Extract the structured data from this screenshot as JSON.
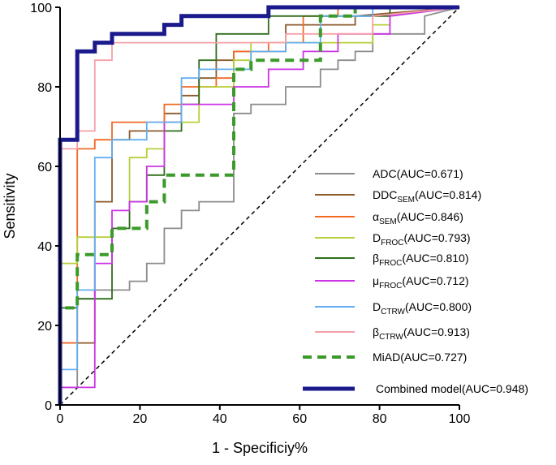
{
  "chart_data": {
    "type": "line",
    "title": "",
    "xlabel": "1 - Specificiy%",
    "ylabel": "Sensitivity",
    "xlim": [
      0,
      100
    ],
    "ylim": [
      0,
      100
    ],
    "x_ticks": [
      "0",
      "20",
      "40",
      "60",
      "80",
      "100"
    ],
    "y_ticks": [
      "0",
      "20",
      "40",
      "60",
      "80",
      "100"
    ],
    "grid": false,
    "legend_position": "bottom-right",
    "reference_line": {
      "x": [
        0,
        100
      ],
      "y": [
        0,
        100
      ],
      "style": "dashed",
      "color": "#000000"
    },
    "series": [
      {
        "name": "ADC",
        "auc_label": "(AUC=0.671)",
        "color": "#8c8c8c",
        "style": "solid",
        "x": [
          0,
          0,
          4.3,
          4.3,
          8.7,
          8.7,
          17.4,
          17.4,
          21.7,
          21.7,
          26.1,
          26.1,
          30.4,
          30.4,
          34.8,
          34.8,
          43.5,
          43.5,
          47.8,
          47.8,
          56.5,
          56.5,
          65.2,
          65.2,
          69.6,
          69.6,
          73.9,
          73.9,
          78.3,
          78.3,
          91.3,
          91.3,
          100
        ],
        "y": [
          0,
          4.4,
          4.4,
          26.7,
          26.7,
          28.9,
          28.9,
          31.1,
          31.1,
          35.6,
          35.6,
          44.4,
          44.4,
          48.9,
          48.9,
          51.1,
          51.1,
          73.3,
          73.3,
          75.6,
          75.6,
          80,
          80,
          84.4,
          84.4,
          86.7,
          86.7,
          88.9,
          88.9,
          93.3,
          93.3,
          97.8,
          100
        ]
      },
      {
        "name": "DDC",
        "sub": "SEM",
        "auc_label": "(AUC=0.814)",
        "color": "#8b5a2b",
        "style": "solid",
        "x": [
          0,
          0,
          8.7,
          8.7,
          13,
          13,
          17.4,
          17.4,
          26.1,
          26.1,
          30.4,
          30.4,
          34.8,
          34.8,
          39.1,
          39.1,
          43.5,
          43.5,
          56.5,
          56.5,
          73.9,
          73.9,
          100
        ],
        "y": [
          0,
          15.6,
          15.6,
          51.1,
          51.1,
          66.7,
          66.7,
          68.9,
          68.9,
          73.3,
          73.3,
          77.8,
          77.8,
          82.2,
          82.2,
          86.7,
          86.7,
          88.9,
          88.9,
          95.6,
          95.6,
          97.8,
          100
        ]
      },
      {
        "name": "α",
        "sub": "SEM",
        "auc_label": "(AUC=0.846)",
        "color": "#f06a24",
        "style": "solid",
        "x": [
          0,
          0,
          4.3,
          4.3,
          8.7,
          8.7,
          13,
          13,
          26.1,
          26.1,
          30.4,
          30.4,
          39.1,
          39.1,
          43.5,
          43.5,
          52.2,
          52.2,
          60.9,
          60.9,
          69.6,
          69.6,
          100
        ],
        "y": [
          0,
          15.6,
          15.6,
          64.4,
          64.4,
          66.7,
          66.7,
          71.1,
          71.1,
          75.6,
          75.6,
          80,
          80,
          82.2,
          82.2,
          88.9,
          88.9,
          91.1,
          91.1,
          97.8,
          97.8,
          100,
          100
        ]
      },
      {
        "name": "D",
        "sub": "FROC",
        "auc_label": "(AUC=0.793)",
        "color": "#b6cf3a",
        "style": "solid",
        "x": [
          0,
          0,
          4.3,
          4.3,
          13,
          13,
          17.4,
          17.4,
          21.7,
          21.7,
          26.1,
          26.1,
          34.8,
          34.8,
          43.5,
          43.5,
          47.8,
          47.8,
          78.3,
          78.3,
          82.6,
          82.6,
          100
        ],
        "y": [
          0,
          35.6,
          35.6,
          42.2,
          42.2,
          44.4,
          44.4,
          62.2,
          62.2,
          64.4,
          64.4,
          71.1,
          71.1,
          80,
          80,
          86.7,
          86.7,
          91.1,
          91.1,
          95.6,
          95.6,
          97.8,
          100
        ]
      },
      {
        "name": "β",
        "sub": "FROC",
        "auc_label": "(AUC=0.810)",
        "color": "#2f6d1d",
        "style": "solid",
        "x": [
          0,
          0,
          4.3,
          4.3,
          13,
          13,
          17.4,
          17.4,
          21.7,
          21.7,
          26.1,
          26.1,
          30.4,
          30.4,
          34.8,
          34.8,
          39.1,
          39.1,
          52.2,
          52.2,
          82.6,
          82.6,
          100
        ],
        "y": [
          0,
          24.4,
          24.4,
          26.7,
          26.7,
          44.4,
          44.4,
          51.1,
          51.1,
          57.8,
          57.8,
          68.9,
          68.9,
          75.6,
          75.6,
          86.7,
          86.7,
          93.3,
          93.3,
          97.8,
          97.8,
          100,
          100
        ]
      },
      {
        "name": "μ",
        "sub": "FROC",
        "auc_label": "(AUC=0.712)",
        "color": "#cc33e6",
        "style": "solid",
        "x": [
          0,
          0,
          8.7,
          8.7,
          13,
          13,
          17.4,
          17.4,
          21.7,
          21.7,
          26.1,
          26.1,
          30.4,
          30.4,
          43.5,
          43.5,
          52.2,
          52.2,
          60.9,
          60.9,
          69.6,
          69.6,
          82.6,
          82.6,
          100
        ],
        "y": [
          0,
          4.4,
          4.4,
          35.6,
          35.6,
          48.9,
          48.9,
          51.1,
          51.1,
          60,
          60,
          71.1,
          71.1,
          75.6,
          75.6,
          80,
          80,
          84.4,
          84.4,
          88.9,
          88.9,
          93.3,
          93.3,
          97.8,
          100
        ]
      },
      {
        "name": "D",
        "sub": "CTRW",
        "auc_label": "(AUC=0.800)",
        "color": "#64aef0",
        "style": "solid",
        "x": [
          0,
          0,
          4.3,
          4.3,
          8.7,
          8.7,
          13,
          13,
          21.7,
          21.7,
          30.4,
          30.4,
          34.8,
          34.8,
          47.8,
          47.8,
          56.5,
          56.5,
          65.2,
          65.2,
          78.3,
          78.3,
          100
        ],
        "y": [
          0,
          8.9,
          8.9,
          28.9,
          28.9,
          62.2,
          62.2,
          66.7,
          66.7,
          71.1,
          71.1,
          82.2,
          82.2,
          84.4,
          84.4,
          88.9,
          88.9,
          91.1,
          91.1,
          97.8,
          97.8,
          100,
          100
        ]
      },
      {
        "name": "β",
        "sub": "CTRW",
        "auc_label": "(AUC=0.913)",
        "color": "#f4a0a8",
        "style": "solid",
        "x": [
          0,
          0,
          4.3,
          4.3,
          8.7,
          8.7,
          13,
          13,
          56.5,
          56.5,
          78.3,
          78.3,
          100
        ],
        "y": [
          0,
          64.4,
          64.4,
          68.9,
          68.9,
          86.7,
          86.7,
          91.1,
          91.1,
          93.3,
          93.3,
          97.8,
          100
        ]
      },
      {
        "name": "MiAD",
        "auc_label": "(AUC=0.727)",
        "color": "#3a9a2a",
        "style": "dashed",
        "x": [
          0,
          0,
          4.3,
          4.3,
          13,
          13,
          21.7,
          21.7,
          26.1,
          26.1,
          43.5,
          43.5,
          47.8,
          47.8,
          65.2,
          65.2,
          73.9,
          73.9,
          100
        ],
        "y": [
          0,
          24.4,
          24.4,
          37.8,
          37.8,
          44.4,
          44.4,
          51.1,
          51.1,
          57.8,
          57.8,
          84.4,
          84.4,
          86.7,
          86.7,
          97.8,
          97.8,
          100,
          100
        ]
      },
      {
        "name": "Combined model",
        "auc_label": "(AUC=0.948)",
        "color": "#1a1a8c",
        "style": "solid-thick",
        "x": [
          0,
          0,
          4.3,
          4.3,
          8.7,
          8.7,
          13,
          13,
          26.1,
          26.1,
          30.4,
          30.4,
          52.2,
          52.2,
          100
        ],
        "y": [
          0,
          66.7,
          66.7,
          88.9,
          88.9,
          91.1,
          91.1,
          93.3,
          93.3,
          95.6,
          95.6,
          97.8,
          97.8,
          100,
          100
        ]
      }
    ]
  }
}
